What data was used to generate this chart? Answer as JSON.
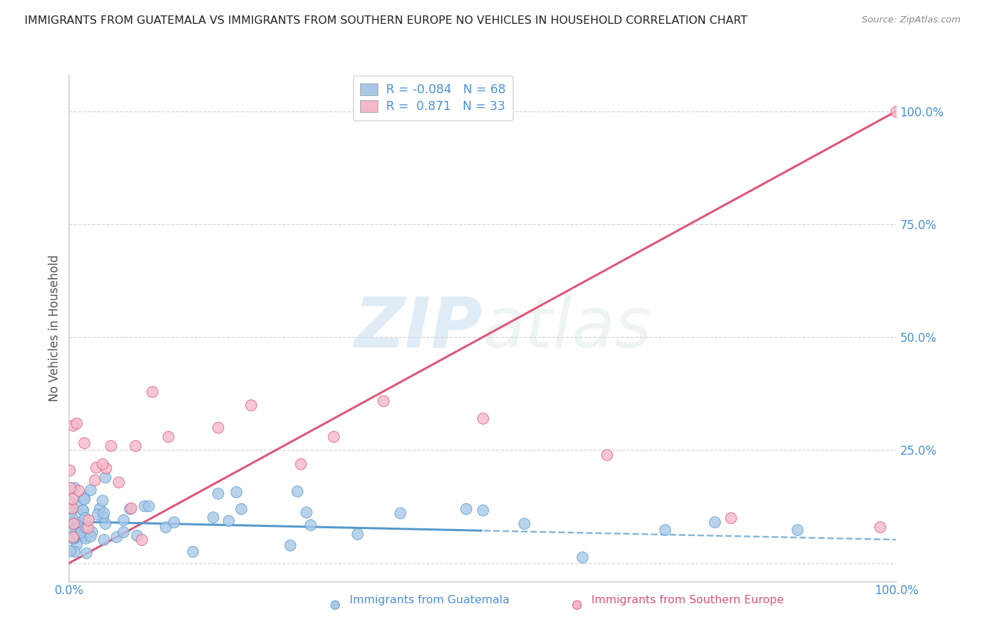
{
  "title": "IMMIGRANTS FROM GUATEMALA VS IMMIGRANTS FROM SOUTHERN EUROPE NO VEHICLES IN HOUSEHOLD CORRELATION CHART",
  "source": "Source: ZipAtlas.com",
  "ylabel": "No Vehicles in Household",
  "xmin": 0.0,
  "xmax": 1.0,
  "ymin": -0.04,
  "ymax": 1.08,
  "ytick_vals": [
    0.0,
    0.25,
    0.5,
    0.75,
    1.0
  ],
  "ytick_labels": [
    "",
    "25.0%",
    "50.0%",
    "75.0%",
    "100.0%"
  ],
  "color_blue": "#a8c8e8",
  "color_pink": "#f5b8c8",
  "line_blue": "#5599cc",
  "line_pink": "#e05575",
  "regression_blue_slope": -0.04,
  "regression_blue_intercept": 0.092,
  "regression_pink_slope": 1.0,
  "regression_pink_intercept": 0.0,
  "watermark_color": "#ddeef8",
  "background_color": "#ffffff",
  "grid_color": "#cccccc",
  "title_color": "#222222",
  "tick_color": "#4a90d9",
  "legend_color_r": "#4a90d9",
  "legend_color_n": "#4a90d9"
}
